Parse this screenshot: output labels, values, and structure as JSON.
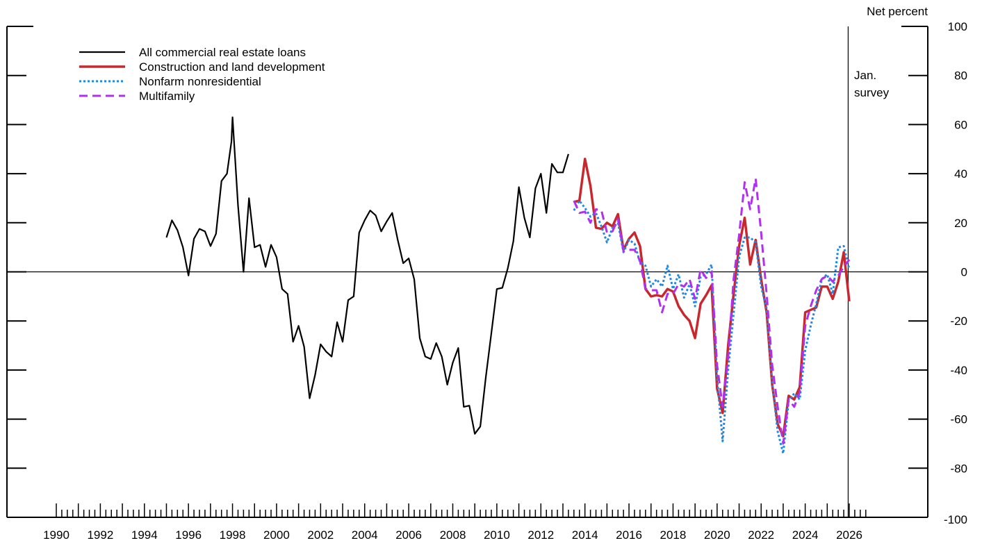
{
  "chart_data": {
    "type": "line",
    "ylabel": "Net percent",
    "ylim": [
      -100,
      100
    ],
    "yticks": [
      100,
      80,
      60,
      40,
      20,
      0,
      -20,
      -40,
      -60,
      -80,
      -100
    ],
    "xlim": [
      1988.5,
      2027.0
    ],
    "xtick_labels": [
      "1990",
      "1992",
      "1994",
      "1996",
      "1998",
      "2000",
      "2002",
      "2004",
      "2006",
      "2008",
      "2010",
      "2012",
      "2014",
      "2016",
      "2018",
      "2020",
      "2022",
      "2024",
      "2026"
    ],
    "annotation": "Jan.\nsurvey",
    "annotation_x": 2025.95,
    "legend_position": "top-left",
    "zero_line": true,
    "series": [
      {
        "name": "All commercial real estate loans",
        "color": "#000000",
        "dash": "solid",
        "width": 2.2,
        "points": [
          [
            1995.0,
            14
          ],
          [
            1995.25,
            21
          ],
          [
            1995.5,
            17
          ],
          [
            1995.75,
            10
          ],
          [
            1996.0,
            -1.5
          ],
          [
            1996.25,
            13.5
          ],
          [
            1996.5,
            17.5
          ],
          [
            1996.75,
            16.5
          ],
          [
            1997.0,
            10.5
          ],
          [
            1997.25,
            15.5
          ],
          [
            1997.5,
            37
          ],
          [
            1997.75,
            40
          ],
          [
            1997.95,
            53
          ],
          [
            1998.0,
            63
          ],
          [
            1998.25,
            27
          ],
          [
            1998.5,
            0
          ],
          [
            1998.75,
            30
          ],
          [
            1999.0,
            10
          ],
          [
            1999.25,
            11
          ],
          [
            1999.5,
            2
          ],
          [
            1999.75,
            11
          ],
          [
            2000.0,
            6
          ],
          [
            2000.25,
            -7
          ],
          [
            2000.5,
            -9
          ],
          [
            2000.75,
            -28.5
          ],
          [
            2001.0,
            -22
          ],
          [
            2001.25,
            -30.5
          ],
          [
            2001.5,
            -51.5
          ],
          [
            2001.75,
            -42
          ],
          [
            2002.0,
            -29.5
          ],
          [
            2002.25,
            -32.5
          ],
          [
            2002.5,
            -34.5
          ],
          [
            2002.75,
            -20.5
          ],
          [
            2003.0,
            -28.5
          ],
          [
            2003.25,
            -11.5
          ],
          [
            2003.5,
            -10
          ],
          [
            2003.75,
            16
          ],
          [
            2004.0,
            21
          ],
          [
            2004.25,
            25
          ],
          [
            2004.5,
            23
          ],
          [
            2004.75,
            16.5
          ],
          [
            2005.0,
            20.5
          ],
          [
            2005.25,
            24
          ],
          [
            2005.5,
            13
          ],
          [
            2005.75,
            3.5
          ],
          [
            2006.0,
            5.5
          ],
          [
            2006.25,
            -3
          ],
          [
            2006.5,
            -27
          ],
          [
            2006.75,
            -34.5
          ],
          [
            2007.0,
            -35.5
          ],
          [
            2007.25,
            -29
          ],
          [
            2007.5,
            -34.5
          ],
          [
            2007.75,
            -46
          ],
          [
            2008.0,
            -37
          ],
          [
            2008.25,
            -31
          ],
          [
            2008.5,
            -55
          ],
          [
            2008.75,
            -54.5
          ],
          [
            2009.0,
            -66
          ],
          [
            2009.25,
            -63
          ],
          [
            2009.5,
            -43
          ],
          [
            2009.75,
            -25
          ],
          [
            2010.0,
            -7
          ],
          [
            2010.25,
            -6.5
          ],
          [
            2010.5,
            1.5
          ],
          [
            2010.75,
            12.5
          ],
          [
            2011.0,
            34.5
          ],
          [
            2011.25,
            22
          ],
          [
            2011.5,
            14
          ],
          [
            2011.75,
            34
          ],
          [
            2012.0,
            40
          ],
          [
            2012.25,
            24
          ],
          [
            2012.5,
            44
          ],
          [
            2012.75,
            40.5
          ],
          [
            2013.0,
            40.5
          ],
          [
            2013.25,
            48
          ]
        ]
      },
      {
        "name": "Construction and land development",
        "color": "#c8282d",
        "dash": "solid",
        "width": 3.5,
        "points": [
          [
            2013.5,
            28.5
          ],
          [
            2013.75,
            29
          ],
          [
            2014.0,
            46
          ],
          [
            2014.25,
            35
          ],
          [
            2014.5,
            18
          ],
          [
            2014.75,
            17.5
          ],
          [
            2015.0,
            20
          ],
          [
            2015.25,
            18.5
          ],
          [
            2015.5,
            23.5
          ],
          [
            2015.75,
            9
          ],
          [
            2016.0,
            13.5
          ],
          [
            2016.25,
            16
          ],
          [
            2016.5,
            10.5
          ],
          [
            2016.75,
            -7
          ],
          [
            2017.0,
            -10
          ],
          [
            2017.25,
            -9.5
          ],
          [
            2017.5,
            -10
          ],
          [
            2017.75,
            -7
          ],
          [
            2018.0,
            -8
          ],
          [
            2018.25,
            -14
          ],
          [
            2018.5,
            -17.5
          ],
          [
            2018.75,
            -20
          ],
          [
            2019.0,
            -27
          ],
          [
            2019.25,
            -13
          ],
          [
            2019.5,
            -9.5
          ],
          [
            2019.75,
            -5.5
          ],
          [
            2020.0,
            -47.5
          ],
          [
            2020.25,
            -57.5
          ],
          [
            2020.5,
            -30
          ],
          [
            2020.75,
            -9
          ],
          [
            2021.0,
            10.5
          ],
          [
            2021.25,
            22
          ],
          [
            2021.5,
            3
          ],
          [
            2021.75,
            13
          ],
          [
            2022.0,
            -3
          ],
          [
            2022.25,
            -16.5
          ],
          [
            2022.5,
            -46
          ],
          [
            2022.75,
            -62
          ],
          [
            2023.0,
            -67
          ],
          [
            2023.25,
            -50.5
          ],
          [
            2023.5,
            -52
          ],
          [
            2023.75,
            -47
          ],
          [
            2024.0,
            -16.5
          ],
          [
            2024.25,
            -15.5
          ],
          [
            2024.5,
            -14.5
          ],
          [
            2024.75,
            -6
          ],
          [
            2025.0,
            -6
          ],
          [
            2025.25,
            -11
          ],
          [
            2025.5,
            -4
          ],
          [
            2025.75,
            8
          ],
          [
            2026.0,
            -12
          ]
        ]
      },
      {
        "name": "Nonfarm nonresidential",
        "color": "#1e88e5",
        "dash": "dotted",
        "width": 3,
        "points": [
          [
            2013.5,
            25
          ],
          [
            2013.75,
            29
          ],
          [
            2014.0,
            26
          ],
          [
            2014.25,
            22.5
          ],
          [
            2014.5,
            24
          ],
          [
            2014.75,
            18.5
          ],
          [
            2015.0,
            12
          ],
          [
            2015.25,
            18
          ],
          [
            2015.5,
            20
          ],
          [
            2015.75,
            8
          ],
          [
            2016.0,
            13
          ],
          [
            2016.25,
            11.5
          ],
          [
            2016.5,
            4
          ],
          [
            2016.75,
            2.5
          ],
          [
            2017.0,
            -6
          ],
          [
            2017.25,
            -3
          ],
          [
            2017.5,
            -6
          ],
          [
            2017.75,
            2.5
          ],
          [
            2018.0,
            -7
          ],
          [
            2018.25,
            -1
          ],
          [
            2018.5,
            -10.5
          ],
          [
            2018.75,
            -5
          ],
          [
            2019.0,
            -14
          ],
          [
            2019.25,
            -2
          ],
          [
            2019.5,
            -1
          ],
          [
            2019.75,
            3
          ],
          [
            2020.0,
            -43
          ],
          [
            2020.25,
            -69
          ],
          [
            2020.5,
            -40
          ],
          [
            2020.75,
            -17
          ],
          [
            2021.0,
            6
          ],
          [
            2021.25,
            14
          ],
          [
            2021.5,
            14
          ],
          [
            2021.75,
            12
          ],
          [
            2022.0,
            -6
          ],
          [
            2022.25,
            -15
          ],
          [
            2022.5,
            -45
          ],
          [
            2022.75,
            -65
          ],
          [
            2023.0,
            -74
          ],
          [
            2023.25,
            -52.5
          ],
          [
            2023.5,
            -49.5
          ],
          [
            2023.75,
            -52
          ],
          [
            2024.0,
            -32
          ],
          [
            2024.25,
            -22
          ],
          [
            2024.5,
            -13
          ],
          [
            2024.75,
            -3
          ],
          [
            2025.0,
            -1
          ],
          [
            2025.25,
            -9
          ],
          [
            2025.5,
            10
          ],
          [
            2025.75,
            10.5
          ],
          [
            2026.0,
            1
          ]
        ]
      },
      {
        "name": "Multifamily",
        "color": "#b030f0",
        "dash": "dashed",
        "width": 3,
        "points": [
          [
            2013.5,
            29
          ],
          [
            2013.75,
            24
          ],
          [
            2014.0,
            24.5
          ],
          [
            2014.25,
            20
          ],
          [
            2014.5,
            25.5
          ],
          [
            2014.75,
            25
          ],
          [
            2015.0,
            16
          ],
          [
            2015.25,
            16.5
          ],
          [
            2015.5,
            21.5
          ],
          [
            2015.75,
            8.5
          ],
          [
            2016.0,
            9
          ],
          [
            2016.25,
            9
          ],
          [
            2016.5,
            4.5
          ],
          [
            2016.75,
            -7
          ],
          [
            2017.0,
            -7.5
          ],
          [
            2017.25,
            -7.5
          ],
          [
            2017.5,
            -16.5
          ],
          [
            2017.75,
            -9
          ],
          [
            2018.0,
            -9
          ],
          [
            2018.25,
            -5
          ],
          [
            2018.5,
            -6
          ],
          [
            2018.75,
            -3
          ],
          [
            2019.0,
            -11
          ],
          [
            2019.25,
            1
          ],
          [
            2019.5,
            -2.5
          ],
          [
            2019.75,
            0
          ],
          [
            2020.0,
            -38
          ],
          [
            2020.25,
            -55
          ],
          [
            2020.5,
            -35
          ],
          [
            2020.75,
            -3
          ],
          [
            2021.0,
            15
          ],
          [
            2021.25,
            36.5
          ],
          [
            2021.5,
            25.5
          ],
          [
            2021.75,
            38
          ],
          [
            2022.0,
            16
          ],
          [
            2022.25,
            -9
          ],
          [
            2022.5,
            -38
          ],
          [
            2022.75,
            -55
          ],
          [
            2023.0,
            -70
          ],
          [
            2023.25,
            -52
          ],
          [
            2023.5,
            -55
          ],
          [
            2023.75,
            -49
          ],
          [
            2024.0,
            -22
          ],
          [
            2024.25,
            -14
          ],
          [
            2024.5,
            -7.5
          ],
          [
            2024.75,
            -3
          ],
          [
            2025.0,
            -1.5
          ],
          [
            2025.25,
            -4
          ],
          [
            2025.5,
            -1.5
          ],
          [
            2025.75,
            2
          ],
          [
            2026.0,
            5
          ]
        ]
      }
    ]
  }
}
